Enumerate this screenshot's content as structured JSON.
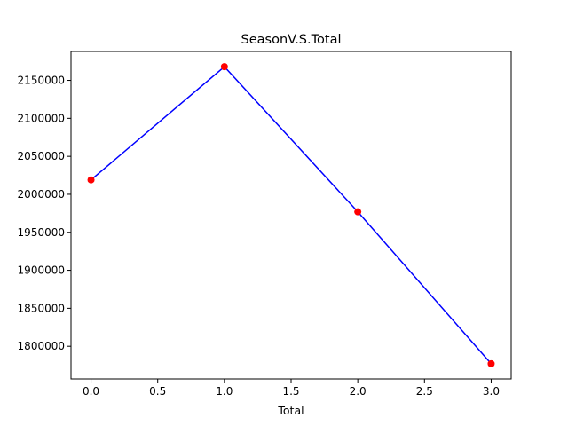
{
  "chart_data": {
    "type": "line",
    "title": "SeasonV.S.Total",
    "xlabel": "Total",
    "ylabel": "",
    "x": [
      0,
      1,
      2,
      3
    ],
    "series": [
      {
        "values": [
          2019000,
          2168000,
          1977000,
          1777000
        ],
        "line_color": "#0000ff",
        "marker_color": "#ff0000"
      }
    ],
    "xlim": [
      -0.15,
      3.15
    ],
    "ylim": [
      1757000,
      2188000
    ],
    "xticks": [
      "0.0",
      "0.5",
      "1.0",
      "1.5",
      "2.0",
      "2.5",
      "3.0"
    ],
    "yticks": [
      "1800000",
      "1850000",
      "1900000",
      "1950000",
      "2000000",
      "2050000",
      "2100000",
      "2150000"
    ],
    "grid": false,
    "legend": "none"
  }
}
